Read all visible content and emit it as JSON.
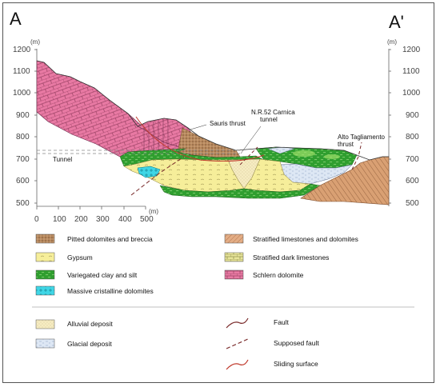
{
  "corner_left": "A",
  "corner_right": "A'",
  "y_unit": "(m)",
  "x_unit": "(m)",
  "y_ticks_left": [
    "1200",
    "1100",
    "1000",
    "900",
    "800",
    "700",
    "600",
    "500"
  ],
  "y_ticks_right": [
    "1200",
    "1100",
    "1000",
    "900",
    "800",
    "700",
    "600",
    "500"
  ],
  "x_ticks": [
    "0",
    "100",
    "200",
    "300",
    "400",
    "500"
  ],
  "annotations": {
    "sauris": "Sauris thrust",
    "nr52_line1": "N.R.52 Carnica",
    "nr52_line2": "tunnel",
    "alto_line1": "Alto Tagliamento",
    "alto_line2": "thrust",
    "tunnel": "Tunnel"
  },
  "legend": {
    "pitted": "Pitted dolomites and breccia",
    "gypsum": "Gypsum",
    "clay": "Variegated clay and silt",
    "massive": "Massive cristalline dolomites",
    "stratified_ld": "Stratified limestones and dolomites",
    "dark_limestones": "Stratified dark limestones",
    "schlern": "Schlern dolomite",
    "alluvial": "Alluvial deposit",
    "glacial": "Glacial deposit",
    "fault": "Fault",
    "supposed_fault": "Supposed fault",
    "sliding": "Sliding surface"
  },
  "colors": {
    "schlern": "#e879a3",
    "clay": "#2f9e2f",
    "clay_light": "#7ccf4a",
    "gypsum": "#f6ee9a",
    "massive": "#3fd6e6",
    "pitted": "#b8895e",
    "stratified_ld": "#d9a073",
    "dark_limestones": "#e8e59a",
    "alluvial": "#f6ecc2",
    "glacial": "#dde7f4",
    "fault": "#7a2b2b",
    "sliding": "#c0392b"
  }
}
